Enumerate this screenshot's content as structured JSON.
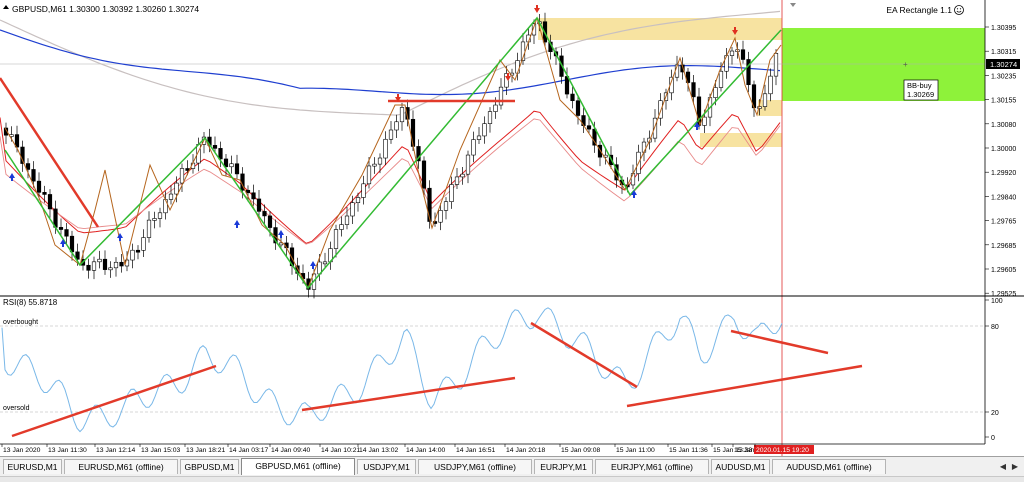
{
  "window": {
    "header": "GBPUSD,M61  1.30300 1.30392 1.30260 1.30274",
    "ea_label": "EA Rectangle 1.1",
    "ea_icon": "smiley-icon"
  },
  "price_axis": {
    "ticks": [
      "1.30395",
      "1.30315",
      "1.30235",
      "1.30155",
      "1.30080",
      "1.30000",
      "1.29920",
      "1.29840",
      "1.29765",
      "1.29685",
      "1.29605",
      "1.29525"
    ],
    "current_price": "1.30274"
  },
  "annotation": {
    "label_line1": "BB-buy",
    "label_line2": "1.30269"
  },
  "indicator": {
    "header": "RSI(8) 55.8718",
    "overbought_label": "overbought",
    "oversold_label": "oversold",
    "scale_ticks": [
      "100",
      "80",
      "20",
      "0"
    ]
  },
  "time_axis": {
    "labels": [
      "13 Jan 2020",
      "13 Jan 11:30",
      "13 Jan 12:14",
      "13 Jan 15:03",
      "13 Jan 18:21",
      "14 Jan 03:17",
      "14 Jan 09:40",
      "14 Jan 10:21",
      "14 Jan 13:02",
      "14 Jan 14:00",
      "14 Jan 16:51",
      "14 Jan 20:18",
      "15 Jan 09:08",
      "15 Jan 11:00",
      "15 Jan 11:36",
      "15 Jan 13:33",
      "15 Jan",
      "2020.01.15 19:20"
    ]
  },
  "tabs": [
    {
      "label": "EURUSD,M1",
      "active": false
    },
    {
      "label": "EURUSD,M61 (offline)",
      "active": false
    },
    {
      "label": "GBPUSD,M1",
      "active": false
    },
    {
      "label": "GBPUSD,M61 (offline)",
      "active": true
    },
    {
      "label": "USDJPY,M1",
      "active": false
    },
    {
      "label": "USDJPY,M61 (offline)",
      "active": false
    },
    {
      "label": "EURJPY,M1",
      "active": false
    },
    {
      "label": "EURJPY,M61 (offline)",
      "active": false
    },
    {
      "label": "AUDUSD,M1",
      "active": false
    },
    {
      "label": "AUDUSD,M61 (offline)",
      "active": false
    }
  ],
  "colors": {
    "bull_candle": "#ffffff",
    "bear_candle": "#000000",
    "zigzag_brown": "#b5651d",
    "zigzag_green": "#33bb33",
    "ma_blue": "#1f3fd0",
    "ma_red": "#e02020",
    "ma_gray": "#c8c0c0",
    "resistance_zone": "#f7e3a1",
    "buy_zone": "#8ef23a",
    "trend_line": "#e23a2a",
    "rsi_line": "#7ab8e8",
    "up_arrow": "#1a3ad8",
    "down_arrow": "#e03020"
  }
}
